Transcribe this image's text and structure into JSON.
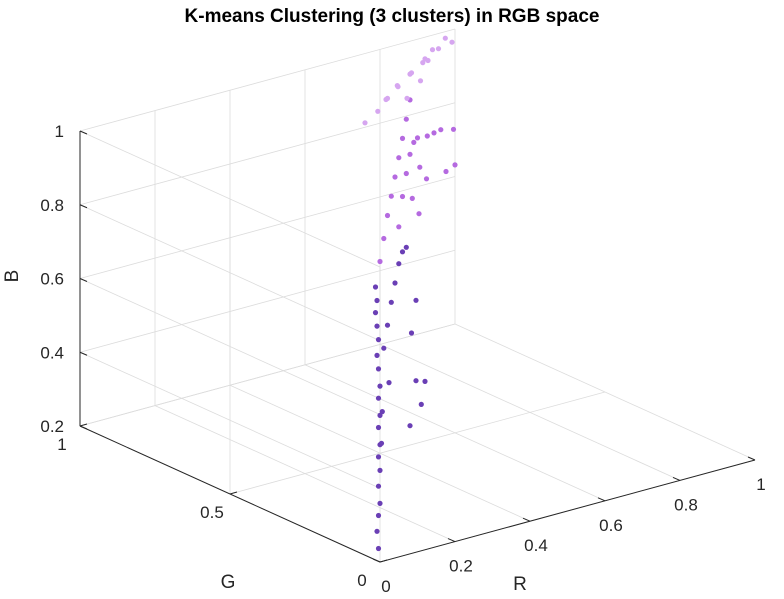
{
  "chart_data": {
    "type": "scatter",
    "title": "K-means Clustering (3 clusters) in RGB space",
    "xlabel": "R",
    "ylabel": "G",
    "zlabel": "B",
    "xlim": [
      0,
      1
    ],
    "ylim": [
      0,
      1
    ],
    "zlim": [
      0.2,
      1
    ],
    "xticks": [
      {
        "v": 0,
        "label": "0"
      },
      {
        "v": 0.2,
        "label": "0.2"
      },
      {
        "v": 0.4,
        "label": "0.4"
      },
      {
        "v": 0.6,
        "label": "0.6"
      },
      {
        "v": 0.8,
        "label": "0.8"
      },
      {
        "v": 1,
        "label": "1"
      }
    ],
    "yticks": [
      {
        "v": 0,
        "label": "0"
      },
      {
        "v": 0.5,
        "label": "0.5"
      },
      {
        "v": 1,
        "label": "1"
      }
    ],
    "zticks": [
      {
        "v": 0.2,
        "label": "0.2"
      },
      {
        "v": 0.4,
        "label": "0.4"
      },
      {
        "v": 0.6,
        "label": "0.6"
      },
      {
        "v": 0.8,
        "label": "0.8"
      },
      {
        "v": 1,
        "label": "1"
      }
    ],
    "grid": true,
    "series": [
      {
        "color": "#6a3fb5",
        "points": [
          [
            0.02,
            0.03,
            0.22
          ],
          [
            0.04,
            0.06,
            0.25
          ],
          [
            0.06,
            0.08,
            0.28
          ],
          [
            0.08,
            0.1,
            0.3
          ],
          [
            0.1,
            0.13,
            0.33
          ],
          [
            0.12,
            0.15,
            0.36
          ],
          [
            0.14,
            0.18,
            0.38
          ],
          [
            0.16,
            0.2,
            0.4
          ],
          [
            0.18,
            0.23,
            0.43
          ],
          [
            0.2,
            0.25,
            0.45
          ],
          [
            0.22,
            0.28,
            0.48
          ],
          [
            0.24,
            0.3,
            0.5
          ],
          [
            0.26,
            0.33,
            0.53
          ],
          [
            0.28,
            0.36,
            0.55
          ],
          [
            0.3,
            0.38,
            0.58
          ],
          [
            0.32,
            0.41,
            0.6
          ],
          [
            0.34,
            0.44,
            0.62
          ],
          [
            0.36,
            0.46,
            0.64
          ],
          [
            0.38,
            0.49,
            0.66
          ],
          [
            0.2,
            0.22,
            0.55
          ],
          [
            0.25,
            0.3,
            0.6
          ],
          [
            0.3,
            0.35,
            0.63
          ],
          [
            0.35,
            0.4,
            0.66
          ],
          [
            0.4,
            0.45,
            0.68
          ],
          [
            0.45,
            0.5,
            0.7
          ],
          [
            0.5,
            0.55,
            0.7
          ],
          [
            0.55,
            0.6,
            0.68
          ],
          [
            0.15,
            0.18,
            0.5
          ],
          [
            0.1,
            0.12,
            0.45
          ],
          [
            0.28,
            0.25,
            0.4
          ],
          [
            0.35,
            0.3,
            0.42
          ],
          [
            0.4,
            0.35,
            0.45
          ],
          [
            0.32,
            0.28,
            0.5
          ],
          [
            0.42,
            0.42,
            0.55
          ],
          [
            0.48,
            0.48,
            0.6
          ]
        ]
      },
      {
        "color": "#b56ae0",
        "points": [
          [
            0.4,
            0.5,
            0.72
          ],
          [
            0.45,
            0.55,
            0.75
          ],
          [
            0.5,
            0.6,
            0.78
          ],
          [
            0.55,
            0.65,
            0.8
          ],
          [
            0.6,
            0.7,
            0.82
          ],
          [
            0.65,
            0.75,
            0.84
          ],
          [
            0.7,
            0.8,
            0.86
          ],
          [
            0.75,
            0.85,
            0.88
          ],
          [
            0.8,
            0.9,
            0.9
          ],
          [
            0.5,
            0.55,
            0.85
          ],
          [
            0.55,
            0.6,
            0.88
          ],
          [
            0.6,
            0.65,
            0.9
          ],
          [
            0.65,
            0.7,
            0.9
          ],
          [
            0.7,
            0.75,
            0.88
          ],
          [
            0.75,
            0.78,
            0.86
          ],
          [
            0.8,
            0.82,
            0.84
          ],
          [
            0.85,
            0.86,
            0.82
          ],
          [
            0.9,
            0.88,
            0.8
          ],
          [
            0.6,
            0.62,
            0.75
          ],
          [
            0.7,
            0.72,
            0.78
          ],
          [
            0.8,
            0.78,
            0.75
          ],
          [
            0.88,
            0.85,
            0.72
          ],
          [
            0.45,
            0.5,
            0.8
          ],
          [
            0.55,
            0.58,
            0.82
          ],
          [
            0.65,
            0.68,
            0.84
          ]
        ]
      },
      {
        "color": "#d6a6f0",
        "points": [
          [
            0.7,
            0.85,
            0.95
          ],
          [
            0.75,
            0.88,
            0.96
          ],
          [
            0.8,
            0.9,
            0.97
          ],
          [
            0.85,
            0.92,
            0.98
          ],
          [
            0.9,
            0.95,
            0.99
          ],
          [
            0.95,
            0.97,
            1.0
          ],
          [
            0.65,
            0.82,
            0.94
          ],
          [
            0.72,
            0.84,
            0.98
          ],
          [
            0.78,
            0.87,
            0.99
          ],
          [
            0.84,
            0.9,
            1.0
          ],
          [
            0.9,
            0.93,
            1.0
          ],
          [
            0.96,
            0.96,
            0.99
          ],
          [
            0.6,
            0.8,
            0.93
          ],
          [
            0.68,
            0.83,
            0.96
          ],
          [
            0.88,
            0.94,
            0.97
          ],
          [
            0.76,
            0.86,
            0.93
          ],
          [
            0.82,
            0.89,
            0.95
          ]
        ]
      }
    ]
  }
}
